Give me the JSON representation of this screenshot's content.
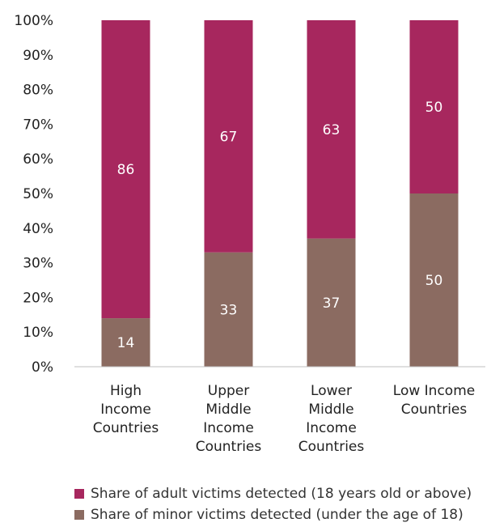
{
  "chart_data": {
    "type": "bar",
    "stacked": true,
    "categories": [
      "High Income Countries",
      "Upper Middle Income Countries",
      "Lower Middle Income Countries",
      "Low Income Countries"
    ],
    "series": [
      {
        "name": "Share of minor victims detected (under the age of 18)",
        "values": [
          14,
          33,
          37,
          50
        ],
        "color": "#8b6b61"
      },
      {
        "name": "Share of adult victims detected (18 years old or above)",
        "values": [
          86,
          67,
          63,
          50
        ],
        "color": "#a7275e"
      }
    ],
    "ylim": [
      0,
      100
    ],
    "y_ticks": [
      "0%",
      "10%",
      "20%",
      "30%",
      "40%",
      "50%",
      "60%",
      "70%",
      "80%",
      "90%",
      "100%"
    ],
    "legend": [
      {
        "label": "Share of adult victims detected (18 years old or above)",
        "color": "#a7275e"
      },
      {
        "label": "Share of minor victims detected (under the age of 18)",
        "color": "#8b6b61"
      }
    ],
    "grid": false,
    "legend_position": "bottom"
  }
}
